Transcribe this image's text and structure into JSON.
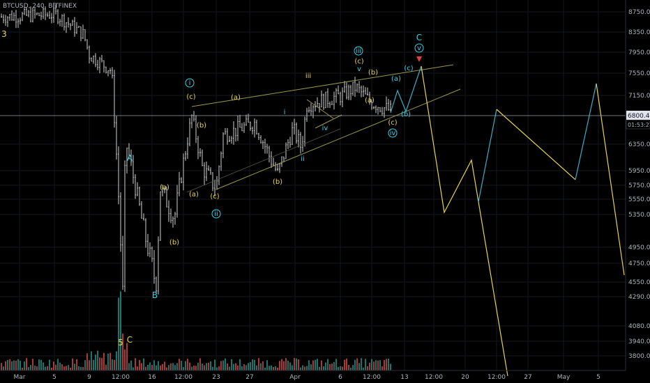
{
  "header": {
    "symbol_text": "BTCUSD, 240, BITFINEX"
  },
  "colors": {
    "background": "#000000",
    "candle": "#cfcfcf",
    "vol_up": "#26a69a",
    "vol_down": "#ef5350",
    "wave_cyan": "#3ad1e6",
    "wave_yellow": "#e8d44d",
    "channel": "#9c9a4f",
    "forecast_yellow": "#e8d44d",
    "forecast_cyan": "#3ab0c8",
    "price_line": "#9aa0a6",
    "arrow": "#e04040"
  },
  "chart_data": {
    "type": "candlestick",
    "x_ticks": [
      "Mar",
      "5",
      "9",
      "12:00",
      "16",
      "12:00",
      "23",
      "27",
      "Apr",
      "6",
      "12:00",
      "13",
      "12:00",
      "20",
      "12:00",
      "27",
      "May",
      "5"
    ],
    "y_ticks": [
      "8750.00",
      "8350.00",
      "7950.00",
      "7550.00",
      "7150.00",
      "6350.00",
      "5950.00",
      "5750.00",
      "5550.00",
      "5350.00",
      "4950.00",
      "4750.00",
      "4550.00",
      "4290.00",
      "4080.00",
      "3940.00",
      "3800.00"
    ],
    "y_range": [
      3650,
      8900
    ],
    "price_line": {
      "value": 6800,
      "label": "6800.4",
      "countdown": "01:53:27"
    },
    "price_path": [
      [
        "Mar",
        8650
      ],
      [
        "5",
        8700
      ],
      [
        "9",
        8300
      ],
      [
        "9",
        7900
      ],
      [
        "12:00",
        7600
      ],
      [
        "12:00",
        4400
      ],
      [
        "12:00",
        6400
      ],
      [
        "16",
        5200
      ],
      [
        "16",
        4500
      ],
      [
        "16",
        5700
      ],
      [
        "12:00",
        5300
      ],
      [
        "12:00",
        6800
      ],
      [
        "12:00",
        6000
      ],
      [
        "23",
        5700
      ],
      [
        "23",
        6500
      ],
      [
        "27",
        6700
      ],
      [
        "27",
        6200
      ],
      [
        "27",
        5900
      ],
      [
        "Apr",
        6600
      ],
      [
        "Apr",
        6300
      ],
      [
        "Apr",
        7000
      ],
      [
        "6",
        7150
      ],
      [
        "12:00",
        7300
      ],
      [
        "12:00",
        7050
      ],
      [
        "12:00",
        6900
      ]
    ],
    "volume_path": [
      [
        "Mar",
        3780
      ],
      [
        "9",
        3800
      ],
      [
        "12:00",
        4300
      ],
      [
        "12:00",
        3900
      ],
      [
        "16",
        3850
      ],
      [
        "12:00",
        3790
      ],
      [
        "27",
        3800
      ],
      [
        "Apr",
        3780
      ],
      [
        "6",
        3790
      ],
      [
        "12:00",
        3800
      ]
    ],
    "forecast_segments": [
      {
        "color": "cyan",
        "points": [
          [
            "12:00",
            6900
          ],
          [
            "13",
            7200
          ],
          [
            "13",
            6950
          ],
          [
            "13",
            7600
          ]
        ]
      },
      {
        "color": "yellow",
        "points": [
          [
            "13",
            7600
          ],
          [
            "12:00",
            5400
          ],
          [
            "20",
            6100
          ],
          [
            "20",
            3650
          ]
        ]
      },
      {
        "color": "cyan",
        "points": [
          [
            "20",
            5500
          ],
          [
            "12:00",
            6950
          ]
        ]
      },
      {
        "color": "yellow",
        "points": [
          [
            "12:00",
            6950
          ],
          [
            "May",
            5800
          ]
        ]
      },
      {
        "color": "cyan",
        "points": [
          [
            "May",
            5800
          ],
          [
            "5",
            7300
          ]
        ]
      },
      {
        "color": "yellow",
        "points": [
          [
            "5",
            7300
          ],
          [
            "5",
            4650
          ]
        ]
      }
    ],
    "channel_lines": [
      {
        "from": [
          "12:00",
          6950
        ],
        "to": [
          "13",
          7700
        ]
      },
      {
        "from": [
          "23",
          5700
        ],
        "to": [
          "13",
          7150
        ]
      }
    ],
    "wave_labels": [
      {
        "text": "3",
        "x": "Mar",
        "y": 8350,
        "color": "yellow"
      },
      {
        "text": "A",
        "x": "12:00",
        "y": 6150,
        "color": "cyan"
      },
      {
        "text": "B",
        "x": "16",
        "y": 4350,
        "color": "cyan"
      },
      {
        "text": "5",
        "x": "12:00",
        "y": 3920,
        "color": "yellow"
      },
      {
        "text": "C",
        "x": "12:00",
        "y": 3940,
        "color": "yellow"
      },
      {
        "text": "(a)",
        "x": "16",
        "y": 5650,
        "color": "yellow"
      },
      {
        "text": "(b)",
        "x": "16",
        "y": 5100,
        "color": "yellow"
      },
      {
        "text": "i",
        "x": "12:00",
        "y": 7250,
        "color": "cyan",
        "circled": true
      },
      {
        "text": "(c)",
        "x": "12:00",
        "y": 7000,
        "color": "yellow"
      },
      {
        "text": "(b)",
        "x": "12:00",
        "y": 6550,
        "color": "yellow"
      },
      {
        "text": "(a)",
        "x": "12:00",
        "y": 5600,
        "color": "yellow"
      },
      {
        "text": "(c)",
        "x": "23",
        "y": 5550,
        "color": "yellow"
      },
      {
        "text": "ii",
        "x": "23",
        "y": 5350,
        "color": "cyan",
        "circled": true
      },
      {
        "text": "(a)",
        "x": "27",
        "y": 7000,
        "color": "yellow"
      },
      {
        "text": "(b)",
        "x": "27",
        "y": 5800,
        "color": "yellow"
      },
      {
        "text": "i",
        "x": "Apr",
        "y": 6850,
        "color": "cyan"
      },
      {
        "text": "ii",
        "x": "Apr",
        "y": 6050,
        "color": "cyan"
      },
      {
        "text": "iii",
        "x": "Apr",
        "y": 7500,
        "color": "yellow"
      },
      {
        "text": "iv",
        "x": "Apr",
        "y": 6450,
        "color": "cyan"
      },
      {
        "text": "iii",
        "x": "6",
        "y": 7850,
        "color": "cyan",
        "circled": true
      },
      {
        "text": "(c)",
        "x": "6",
        "y": 7700,
        "color": "yellow"
      },
      {
        "text": "v",
        "x": "6",
        "y": 7600,
        "color": "cyan"
      },
      {
        "text": "(b)",
        "x": "12:00",
        "y": 7550,
        "color": "yellow"
      },
      {
        "text": "(a)",
        "x": "12:00",
        "y": 7000,
        "color": "yellow"
      },
      {
        "text": "(c)",
        "x": "12:00",
        "y": 6650,
        "color": "yellow"
      },
      {
        "text": "iv",
        "x": "12:00",
        "y": 6450,
        "color": "cyan",
        "circled": true
      },
      {
        "text": "(a)",
        "x": "12:00",
        "y": 7300,
        "color": "cyan"
      },
      {
        "text": "(b)",
        "x": "12:00",
        "y": 6800,
        "color": "cyan"
      },
      {
        "text": "(c)",
        "x": "13",
        "y": 7600,
        "color": "cyan"
      },
      {
        "text": "C",
        "x": "13",
        "y": 8150,
        "color": "cyan"
      },
      {
        "text": "v",
        "x": "13",
        "y": 7950,
        "color": "cyan",
        "circled": true
      }
    ]
  }
}
